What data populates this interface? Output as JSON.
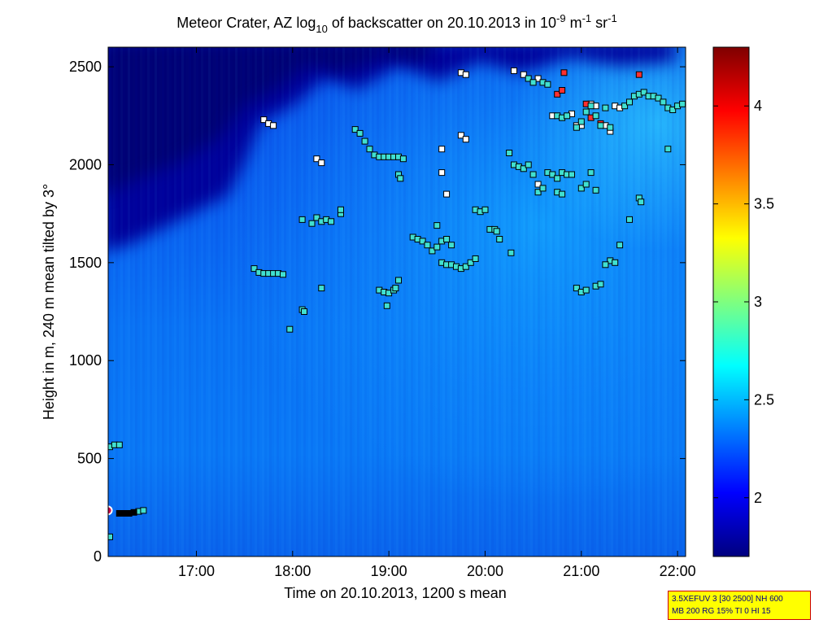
{
  "chart_data": {
    "type": "heatmap",
    "title": {
      "prefix": "Meteor Crater, AZ log",
      "sub": "10",
      "mid": " of backscatter on 20.10.2013 in 10",
      "sup1": "-9",
      "unit1": " m",
      "sup2": "-1",
      "unit2": " sr",
      "sup3": "-1"
    },
    "xlabel": "Time on 20.10.2013, 1200 s mean",
    "ylabel": "Height in m, 240 m mean tilted by 3°",
    "x_ticks": [
      "17:00",
      "18:00",
      "19:00",
      "20:00",
      "21:00",
      "22:00"
    ],
    "y_ticks": [
      "0",
      "500",
      "1000",
      "1500",
      "2000",
      "2500"
    ],
    "xlim": [
      "16:05",
      "22:05"
    ],
    "ylim": [
      0,
      2600
    ],
    "colorbar": {
      "range": [
        1.7,
        4.3
      ],
      "ticks": [
        "2",
        "2.5",
        "3",
        "3.5",
        "4"
      ],
      "colors": [
        "#00007f",
        "#0000ff",
        "#007fff",
        "#00ffff",
        "#7fff7f",
        "#ffff00",
        "#ff7f00",
        "#ff0000",
        "#7f0000"
      ]
    },
    "marker_series": [
      {
        "color": "#ffffff",
        "points": [
          [
            17.7,
            2230
          ],
          [
            17.75,
            2210
          ],
          [
            17.8,
            2200
          ],
          [
            18.25,
            2030
          ],
          [
            18.3,
            2010
          ],
          [
            19.75,
            2470
          ],
          [
            19.8,
            2460
          ],
          [
            19.55,
            2080
          ],
          [
            19.75,
            2150
          ],
          [
            19.8,
            2130
          ],
          [
            19.55,
            1960
          ],
          [
            19.6,
            1850
          ],
          [
            20.3,
            2480
          ],
          [
            20.4,
            2460
          ],
          [
            20.55,
            2440
          ],
          [
            20.7,
            2250
          ],
          [
            20.9,
            2260
          ],
          [
            21.0,
            2200
          ],
          [
            21.1,
            2310
          ],
          [
            21.25,
            2200
          ],
          [
            21.3,
            2170
          ],
          [
            21.35,
            2300
          ],
          [
            21.4,
            2290
          ],
          [
            21.15,
            2300
          ],
          [
            20.95,
            2200
          ],
          [
            20.55,
            1900
          ]
        ]
      },
      {
        "color": "#ff3030",
        "points": [
          [
            20.75,
            2360
          ],
          [
            20.8,
            2380
          ],
          [
            20.82,
            2470
          ],
          [
            21.05,
            2310
          ],
          [
            21.1,
            2240
          ],
          [
            21.2,
            2210
          ],
          [
            21.6,
            2460
          ]
        ]
      },
      {
        "color": "#40e0d0",
        "points": [
          [
            17.6,
            1470
          ],
          [
            17.65,
            1450
          ],
          [
            17.7,
            1445
          ],
          [
            17.75,
            1445
          ],
          [
            17.8,
            1445
          ],
          [
            17.85,
            1445
          ],
          [
            17.9,
            1440
          ],
          [
            18.1,
            1720
          ],
          [
            18.2,
            1700
          ],
          [
            18.25,
            1730
          ],
          [
            18.3,
            1710
          ],
          [
            18.35,
            1720
          ],
          [
            18.4,
            1710
          ],
          [
            18.5,
            1750
          ],
          [
            18.5,
            1770
          ],
          [
            18.1,
            1260
          ],
          [
            18.12,
            1250
          ],
          [
            18.3,
            1370
          ],
          [
            17.97,
            1160
          ],
          [
            18.65,
            2180
          ],
          [
            18.7,
            2160
          ],
          [
            18.75,
            2120
          ],
          [
            18.8,
            2080
          ],
          [
            18.85,
            2050
          ],
          [
            18.9,
            2040
          ],
          [
            18.95,
            2040
          ],
          [
            19.0,
            2040
          ],
          [
            19.05,
            2040
          ],
          [
            19.1,
            2040
          ],
          [
            19.15,
            2030
          ],
          [
            19.1,
            1950
          ],
          [
            19.12,
            1930
          ],
          [
            18.9,
            1360
          ],
          [
            18.95,
            1350
          ],
          [
            19.0,
            1345
          ],
          [
            19.05,
            1360
          ],
          [
            19.07,
            1370
          ],
          [
            19.1,
            1410
          ],
          [
            18.98,
            1280
          ],
          [
            19.25,
            1630
          ],
          [
            19.3,
            1620
          ],
          [
            19.35,
            1610
          ],
          [
            19.4,
            1590
          ],
          [
            19.45,
            1560
          ],
          [
            19.5,
            1580
          ],
          [
            19.55,
            1610
          ],
          [
            19.6,
            1620
          ],
          [
            19.65,
            1590
          ],
          [
            19.5,
            1690
          ],
          [
            19.55,
            1500
          ],
          [
            19.6,
            1490
          ],
          [
            19.65,
            1490
          ],
          [
            19.7,
            1480
          ],
          [
            19.75,
            1470
          ],
          [
            19.8,
            1480
          ],
          [
            19.85,
            1500
          ],
          [
            19.9,
            1520
          ],
          [
            19.9,
            1770
          ],
          [
            19.95,
            1760
          ],
          [
            20.0,
            1770
          ],
          [
            20.05,
            1670
          ],
          [
            20.1,
            1670
          ],
          [
            20.12,
            1660
          ],
          [
            20.15,
            1620
          ],
          [
            20.27,
            1550
          ],
          [
            20.25,
            2060
          ],
          [
            20.3,
            2000
          ],
          [
            20.35,
            1990
          ],
          [
            20.4,
            1980
          ],
          [
            20.45,
            2000
          ],
          [
            20.5,
            1950
          ],
          [
            20.55,
            1860
          ],
          [
            20.6,
            1880
          ],
          [
            20.65,
            1960
          ],
          [
            20.7,
            1950
          ],
          [
            20.75,
            1930
          ],
          [
            20.8,
            1960
          ],
          [
            20.85,
            1950
          ],
          [
            20.75,
            1860
          ],
          [
            20.8,
            1850
          ],
          [
            20.9,
            1950
          ],
          [
            21.0,
            1880
          ],
          [
            21.05,
            1900
          ],
          [
            21.1,
            1960
          ],
          [
            20.95,
            1370
          ],
          [
            21.0,
            1350
          ],
          [
            21.05,
            1360
          ],
          [
            21.15,
            1380
          ],
          [
            21.2,
            1390
          ],
          [
            20.45,
            2440
          ],
          [
            20.5,
            2420
          ],
          [
            20.6,
            2420
          ],
          [
            20.65,
            2410
          ],
          [
            20.75,
            2250
          ],
          [
            20.8,
            2240
          ],
          [
            20.85,
            2250
          ],
          [
            20.95,
            2190
          ],
          [
            21.0,
            2220
          ],
          [
            21.05,
            2270
          ],
          [
            21.1,
            2300
          ],
          [
            21.15,
            2250
          ],
          [
            21.2,
            2200
          ],
          [
            21.3,
            2190
          ],
          [
            21.25,
            2290
          ],
          [
            21.45,
            2300
          ],
          [
            21.5,
            2320
          ],
          [
            21.55,
            2350
          ],
          [
            21.6,
            2360
          ],
          [
            21.65,
            2370
          ],
          [
            21.7,
            2350
          ],
          [
            21.75,
            2350
          ],
          [
            21.8,
            2340
          ],
          [
            21.85,
            2320
          ],
          [
            21.9,
            2290
          ],
          [
            21.95,
            2280
          ],
          [
            22.0,
            2300
          ],
          [
            22.05,
            2310
          ],
          [
            21.6,
            1830
          ],
          [
            21.62,
            1810
          ],
          [
            21.5,
            1720
          ],
          [
            21.3,
            1510
          ],
          [
            21.35,
            1500
          ],
          [
            21.4,
            1590
          ],
          [
            21.25,
            1490
          ],
          [
            21.9,
            2080
          ],
          [
            21.15,
            1870
          ],
          [
            16.1,
            560
          ],
          [
            16.15,
            570
          ],
          [
            16.2,
            570
          ],
          [
            16.1,
            100
          ],
          [
            16.4,
            230
          ],
          [
            16.45,
            235
          ]
        ]
      },
      {
        "color": "#000000",
        "points": [
          [
            16.2,
            220
          ],
          [
            16.25,
            220
          ],
          [
            16.3,
            220
          ],
          [
            16.35,
            225
          ]
        ]
      }
    ],
    "circle_marker": {
      "x": 16.08,
      "y": 235,
      "color": "#cc0044"
    }
  },
  "info_box": {
    "line1": "3.5XEFUV 3 [30 2500] NH 600",
    "line2": "MB 200 RG 15% TI 0 HI 15"
  }
}
